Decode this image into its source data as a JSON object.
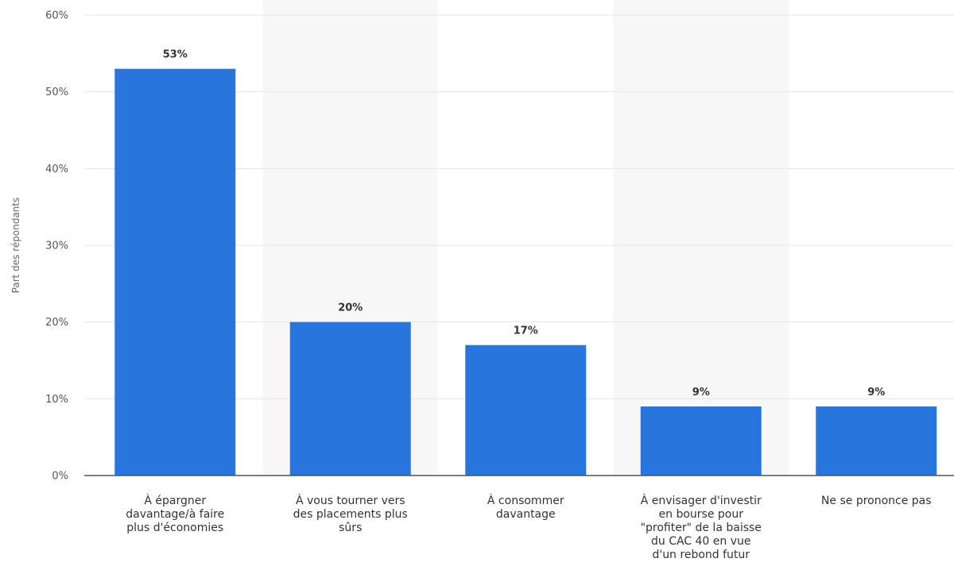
{
  "chart_data": {
    "type": "bar",
    "categories": [
      [
        "À épargner",
        "davantage/à faire",
        "plus d'économies"
      ],
      [
        "À vous tourner vers",
        "des placements plus",
        "sûrs"
      ],
      [
        "À consommer",
        "davantage"
      ],
      [
        "À envisager d'investir",
        "en bourse pour",
        "\"profiter\" de la baisse",
        "du CAC 40 en vue",
        "d'un rebond futur"
      ],
      [
        "Ne se prononce pas"
      ]
    ],
    "values": [
      53,
      20,
      17,
      9,
      9
    ],
    "value_labels": [
      "53%",
      "20%",
      "17%",
      "9%",
      "9%"
    ],
    "ylabel": "Part des répondants",
    "ylim": [
      0,
      60
    ],
    "yticks": [
      0,
      10,
      20,
      30,
      40,
      50,
      60
    ],
    "ytick_labels": [
      "0%",
      "10%",
      "20%",
      "30%",
      "40%",
      "50%",
      "60%"
    ],
    "grid": true,
    "colors": {
      "bar": "#2876dd",
      "grid": "#e6e6e6",
      "band": "#f7f7f7",
      "axis": "#555555"
    }
  }
}
